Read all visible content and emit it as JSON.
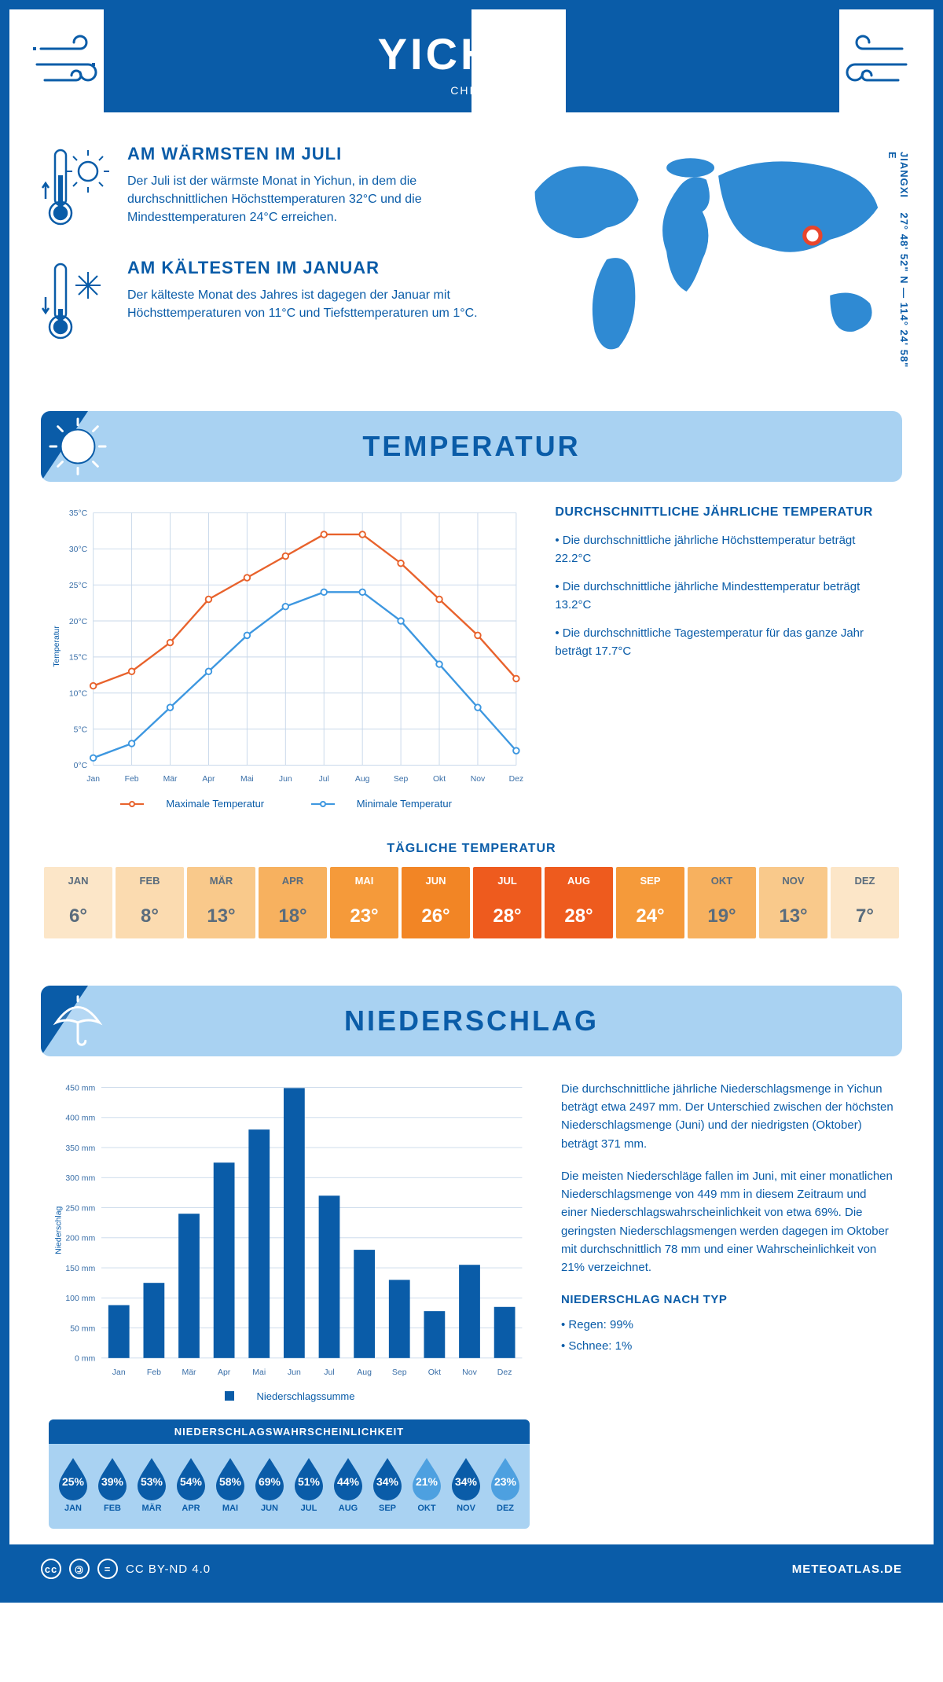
{
  "header": {
    "city": "YICHUN",
    "country": "CHINA"
  },
  "coords": {
    "region": "JIANGXI",
    "lat": "27° 48' 52\" N",
    "lon": "114° 24' 58\" E"
  },
  "warmest": {
    "title": "AM WÄRMSTEN IM JULI",
    "text": "Der Juli ist der wärmste Monat in Yichun, in dem die durchschnittlichen Höchsttemperaturen 32°C und die Mindesttemperaturen 24°C erreichen."
  },
  "coldest": {
    "title": "AM KÄLTESTEN IM JANUAR",
    "text": "Der kälteste Monat des Jahres ist dagegen der Januar mit Höchsttemperaturen von 11°C und Tiefsttemperaturen um 1°C."
  },
  "colors": {
    "primary": "#0a5ca8",
    "banner": "#a9d2f2",
    "max_line": "#e8622c",
    "min_line": "#3d97e0",
    "bar": "#0a5ca8",
    "grid": "#c8d8ea",
    "drop_dark": "#0a5ca8",
    "drop_light": "#4da0e0"
  },
  "months": [
    "Jan",
    "Feb",
    "Mär",
    "Apr",
    "Mai",
    "Jun",
    "Jul",
    "Aug",
    "Sep",
    "Okt",
    "Nov",
    "Dez"
  ],
  "months_upper": [
    "JAN",
    "FEB",
    "MÄR",
    "APR",
    "MAI",
    "JUN",
    "JUL",
    "AUG",
    "SEP",
    "OKT",
    "NOV",
    "DEZ"
  ],
  "temperature_section": {
    "title": "TEMPERATUR",
    "heading": "DURCHSCHNITTLICHE JÄHRLICHE TEMPERATUR",
    "bullets": [
      "• Die durchschnittliche jährliche Höchsttemperatur beträgt 22.2°C",
      "• Die durchschnittliche jährliche Mindesttemperatur beträgt 13.2°C",
      "• Die durchschnittliche Tagestemperatur für das ganze Jahr beträgt 17.7°C"
    ],
    "legend_max": "Maximale Temperatur",
    "legend_min": "Minimale Temperatur",
    "y_label": "Temperatur",
    "ylim": [
      0,
      35
    ],
    "ytick_step": 5,
    "tick_suffix": "°C",
    "max_values": [
      11,
      13,
      17,
      23,
      26,
      29,
      32,
      32,
      28,
      23,
      18,
      12
    ],
    "min_values": [
      1,
      3,
      8,
      13,
      18,
      22,
      24,
      24,
      20,
      14,
      8,
      2
    ]
  },
  "daily_temp": {
    "title": "TÄGLICHE TEMPERATUR",
    "values": [
      6,
      8,
      13,
      18,
      23,
      26,
      28,
      28,
      24,
      19,
      13,
      7
    ],
    "colors": [
      "#fce6c8",
      "#fbdbb0",
      "#f9c98b",
      "#f7b15f",
      "#f59a3a",
      "#f28525",
      "#ee5b1e",
      "#ee5b1e",
      "#f59a3a",
      "#f7b15f",
      "#f9c98b",
      "#fce6c8"
    ],
    "text_colors": [
      "#5a6c7d",
      "#5a6c7d",
      "#5a6c7d",
      "#5a6c7d",
      "#ffffff",
      "#ffffff",
      "#ffffff",
      "#ffffff",
      "#ffffff",
      "#5a6c7d",
      "#5a6c7d",
      "#5a6c7d"
    ]
  },
  "precip_section": {
    "title": "NIEDERSCHLAG",
    "y_label": "Niederschlag",
    "ylim": [
      0,
      450
    ],
    "ytick_step": 50,
    "tick_suffix": " mm",
    "legend": "Niederschlagssumme",
    "values": [
      88,
      125,
      240,
      325,
      380,
      449,
      270,
      180,
      130,
      78,
      155,
      85
    ],
    "text1": "Die durchschnittliche jährliche Niederschlagsmenge in Yichun beträgt etwa 2497 mm. Der Unterschied zwischen der höchsten Niederschlagsmenge (Juni) und der niedrigsten (Oktober) beträgt 371 mm.",
    "text2": "Die meisten Niederschläge fallen im Juni, mit einer monatlichen Niederschlagsmenge von 449 mm in diesem Zeitraum und einer Niederschlagswahrscheinlichkeit von etwa 69%. Die geringsten Niederschlagsmengen werden dagegen im Oktober mit durchschnittlich 78 mm und einer Wahrscheinlichkeit von 21% verzeichnet.",
    "type_heading": "NIEDERSCHLAG NACH TYP",
    "type_rain": "• Regen: 99%",
    "type_snow": "• Schnee: 1%"
  },
  "prob": {
    "title": "NIEDERSCHLAGSWAHRSCHEINLICHKEIT",
    "values": [
      25,
      39,
      53,
      54,
      58,
      69,
      51,
      44,
      34,
      21,
      34,
      23
    ],
    "light_threshold": 25
  },
  "footer": {
    "license": "CC BY-ND 4.0",
    "site": "METEOATLAS.DE"
  }
}
